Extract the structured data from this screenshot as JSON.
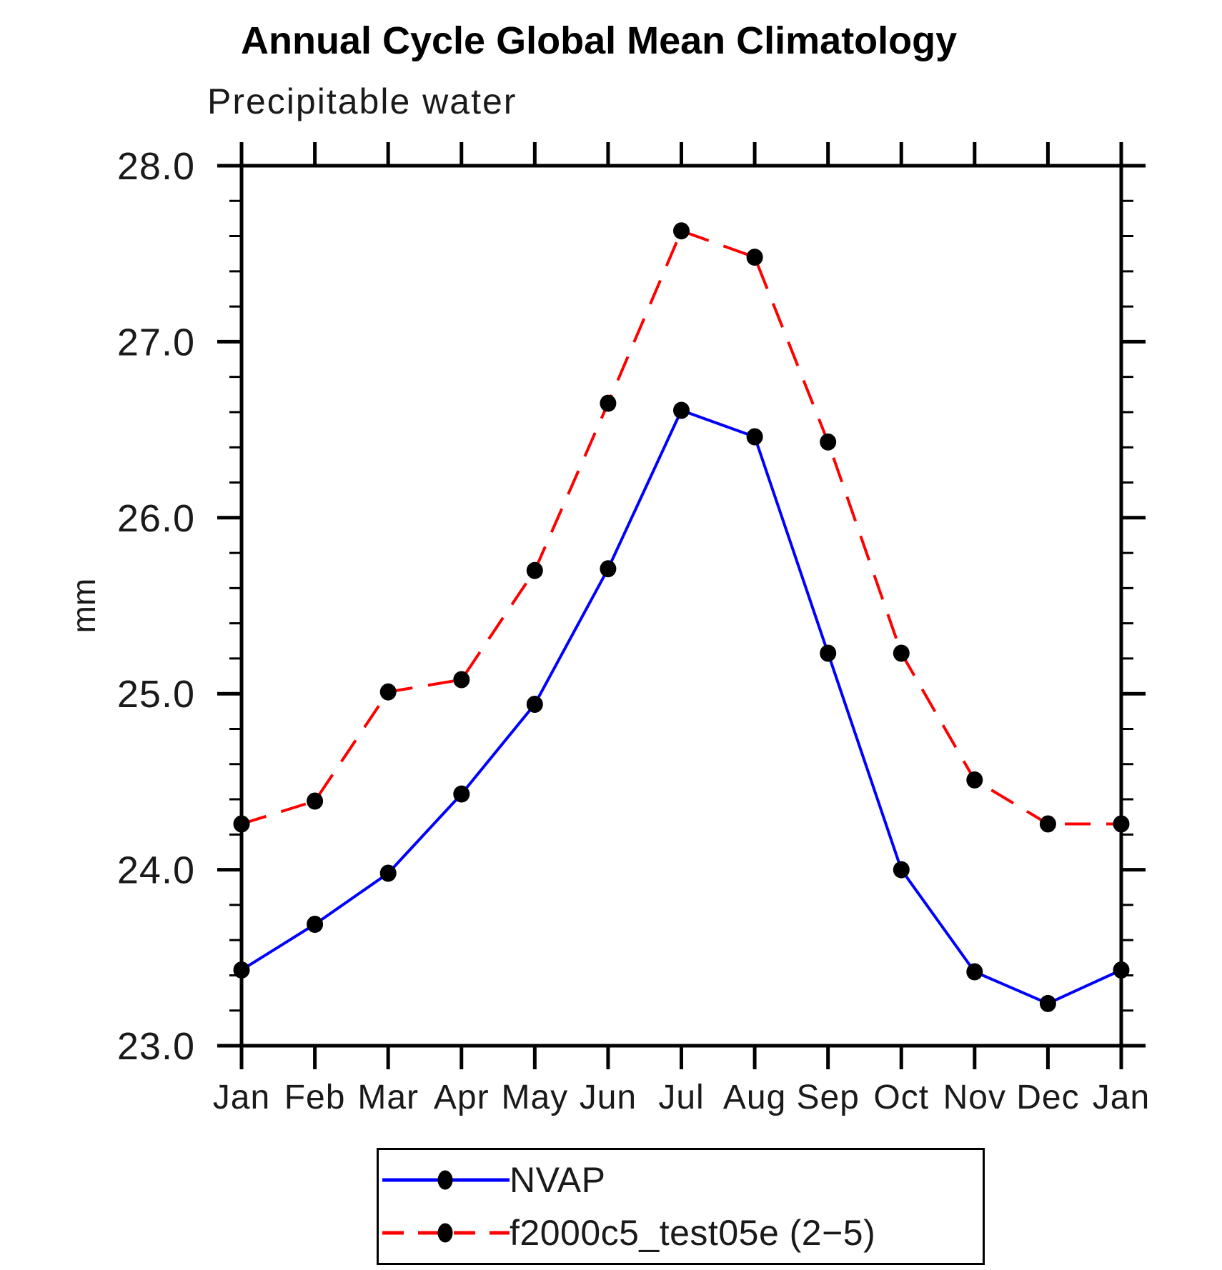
{
  "figure": {
    "title": "Annual Cycle Global Mean Climatology",
    "subtitle": "Precipitable water",
    "y_axis_title": "mm"
  },
  "chart_data": {
    "type": "line",
    "title": "Annual Cycle Global Mean Climatology",
    "subtitle": "Precipitable water",
    "xlabel": "",
    "ylabel": "mm",
    "categories": [
      "Jan",
      "Feb",
      "Mar",
      "Apr",
      "May",
      "Jun",
      "Jul",
      "Aug",
      "Sep",
      "Oct",
      "Nov",
      "Dec",
      "Jan"
    ],
    "y_ticks": [
      "23.0",
      "24.0",
      "25.0",
      "26.0",
      "27.0",
      "28.0"
    ],
    "ylim": [
      23.0,
      28.0
    ],
    "y_major_step": 1.0,
    "y_minor_step": 0.2,
    "grid": false,
    "legend_position": "bottom",
    "axis_color": "#000000",
    "marker_color": "#000000",
    "series": [
      {
        "name": "NVAP",
        "color": "#0000ff",
        "style": "solid",
        "marker": "filled-circle",
        "values": [
          23.43,
          23.69,
          23.98,
          24.43,
          24.94,
          25.71,
          26.61,
          26.46,
          25.23,
          24.0,
          23.42,
          23.24,
          23.43
        ]
      },
      {
        "name": "f2000c5_test05e (2−5)",
        "color": "#ff0000",
        "style": "dashed",
        "marker": "filled-circle",
        "values": [
          24.26,
          24.39,
          25.01,
          25.08,
          25.7,
          26.65,
          27.63,
          27.48,
          26.43,
          25.23,
          24.51,
          24.26,
          24.26
        ]
      }
    ]
  }
}
